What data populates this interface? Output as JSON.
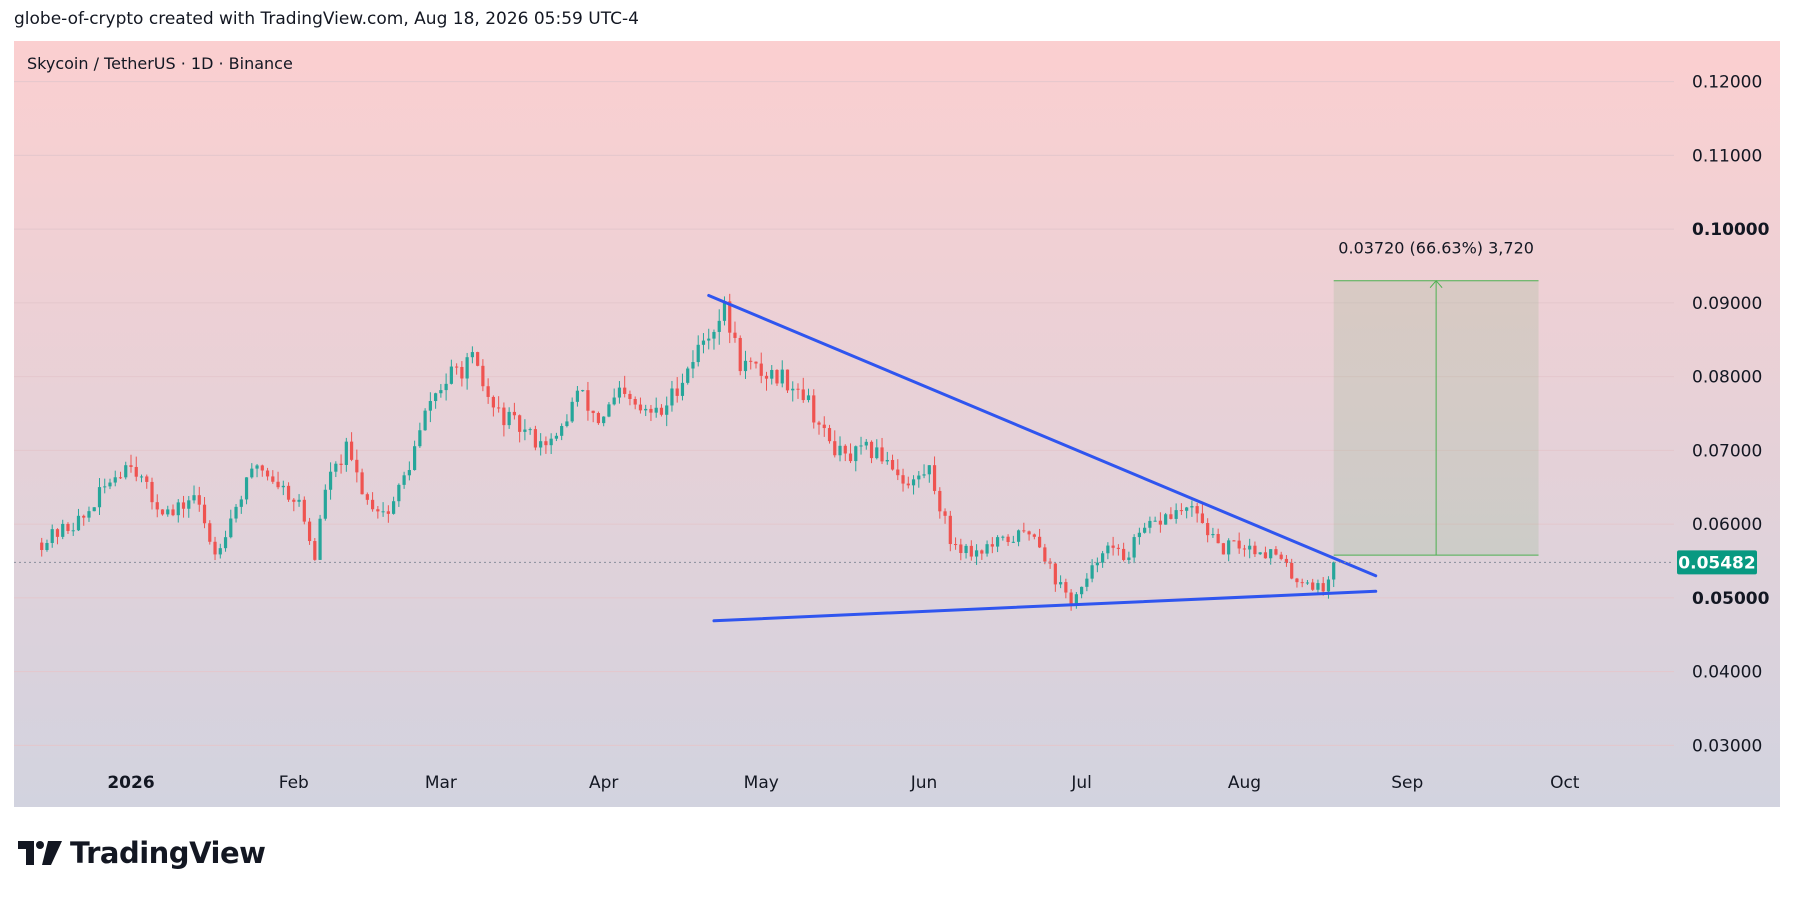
{
  "header": {
    "title": "globe-of-crypto created with TradingView.com, Aug 18, 2026 05:59 UTC-4"
  },
  "branding": {
    "logo_text": "TradingView"
  },
  "chart_data": {
    "type": "candlestick",
    "symbol_label": "Skycoin / TetherUS · 1D · Binance",
    "x_ticks": [
      "2026",
      "Feb",
      "Mar",
      "Apr",
      "May",
      "Jun",
      "Jul",
      "Aug",
      "Sep",
      "Oct"
    ],
    "y_ticks": [
      "0.12000",
      "0.11000",
      "0.10000",
      "0.09000",
      "0.08000",
      "0.07000",
      "0.06000",
      "0.05000",
      "0.04000",
      "0.03000"
    ],
    "y_ticks_bold": [
      "0.10000",
      "0.05000"
    ],
    "ylim": [
      0.0245,
      0.1255
    ],
    "last_price": "0.05482",
    "last_price_value": 0.05482,
    "measure_label": "0.03720 (66.63%) 3,720",
    "measure": {
      "from_date": "2026-08-18",
      "to_date": "2026-09-26",
      "from_price": 0.0558,
      "to_price": 0.093
    },
    "trendlines": [
      {
        "name": "descending resistance",
        "from": [
          "2026-04-21",
          0.091
        ],
        "to": [
          "2026-08-26",
          0.053
        ]
      },
      {
        "name": "rising support",
        "from": [
          "2026-04-22",
          0.0469
        ],
        "to": [
          "2026-08-26",
          0.0509
        ]
      }
    ],
    "colors": {
      "up": "#26a69a",
      "down": "#ef5350",
      "trendline": "#2f55ef",
      "last_price": "#089981",
      "bg_top": "#fbcfd0",
      "bg_bottom": "#d2d3df"
    },
    "series": [
      {
        "name": "Skycoin / TetherUS",
        "type": "close",
        "points": [
          [
            "2025-12-15",
            0.0575
          ],
          [
            "2025-12-19",
            0.0592
          ],
          [
            "2025-12-23",
            0.0608
          ],
          [
            "2025-12-28",
            0.066
          ],
          [
            "2026-01-01",
            0.0688
          ],
          [
            "2026-01-05",
            0.0632
          ],
          [
            "2026-01-09",
            0.0612
          ],
          [
            "2026-01-13",
            0.064
          ],
          [
            "2026-01-17",
            0.056
          ],
          [
            "2026-01-21",
            0.0625
          ],
          [
            "2026-01-25",
            0.0682
          ],
          [
            "2026-01-29",
            0.0655
          ],
          [
            "2026-02-02",
            0.0628
          ],
          [
            "2026-02-05",
            0.0555
          ],
          [
            "2026-02-07",
            0.065
          ],
          [
            "2026-02-11",
            0.07
          ],
          [
            "2026-02-15",
            0.0632
          ],
          [
            "2026-02-19",
            0.0615
          ],
          [
            "2026-02-23",
            0.068
          ],
          [
            "2026-02-27",
            0.0768
          ],
          [
            "2026-03-03",
            0.0802
          ],
          [
            "2026-03-07",
            0.082
          ],
          [
            "2026-03-11",
            0.0755
          ],
          [
            "2026-03-15",
            0.0735
          ],
          [
            "2026-03-19",
            0.0715
          ],
          [
            "2026-03-23",
            0.0712
          ],
          [
            "2026-03-27",
            0.078
          ],
          [
            "2026-03-31",
            0.074
          ],
          [
            "2026-04-04",
            0.0775
          ],
          [
            "2026-04-08",
            0.0752
          ],
          [
            "2026-04-12",
            0.075
          ],
          [
            "2026-04-16",
            0.08
          ],
          [
            "2026-04-20",
            0.085
          ],
          [
            "2026-04-24",
            0.089
          ],
          [
            "2026-04-27",
            0.082
          ],
          [
            "2026-05-01",
            0.0805
          ],
          [
            "2026-05-05",
            0.08
          ],
          [
            "2026-05-09",
            0.078
          ],
          [
            "2026-05-13",
            0.072
          ],
          [
            "2026-05-17",
            0.0688
          ],
          [
            "2026-05-21",
            0.07
          ],
          [
            "2026-05-25",
            0.069
          ],
          [
            "2026-05-29",
            0.0652
          ],
          [
            "2026-06-02",
            0.0675
          ],
          [
            "2026-06-06",
            0.0578
          ],
          [
            "2026-06-10",
            0.0562
          ],
          [
            "2026-06-14",
            0.057
          ],
          [
            "2026-06-18",
            0.0582
          ],
          [
            "2026-06-22",
            0.059
          ],
          [
            "2026-06-26",
            0.0525
          ],
          [
            "2026-06-29",
            0.0495
          ],
          [
            "2026-07-02",
            0.052
          ],
          [
            "2026-07-05",
            0.057
          ],
          [
            "2026-07-09",
            0.0555
          ],
          [
            "2026-07-13",
            0.059
          ],
          [
            "2026-07-17",
            0.061
          ],
          [
            "2026-07-21",
            0.062
          ],
          [
            "2026-07-24",
            0.0605
          ],
          [
            "2026-07-27",
            0.0565
          ],
          [
            "2026-07-31",
            0.0572
          ],
          [
            "2026-08-04",
            0.0565
          ],
          [
            "2026-08-07",
            0.0558
          ],
          [
            "2026-08-10",
            0.053
          ],
          [
            "2026-08-13",
            0.0522
          ],
          [
            "2026-08-16",
            0.051
          ],
          [
            "2026-08-18",
            0.0548
          ]
        ]
      }
    ]
  }
}
